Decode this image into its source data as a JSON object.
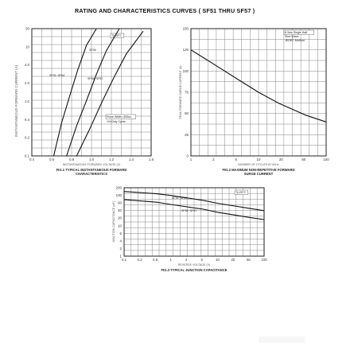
{
  "page": {
    "title": "RATING AND CHARACTERISTICS CURVES ( SF51 THRU SF57 )",
    "side_label": "INSTANTANEOUS FORWARD CURRENT (A)"
  },
  "chart_data": [
    {
      "type": "line",
      "name": "fig1",
      "caption": [
        "FIG.1 TYPICAL INSTANTANEOUS FORWARD",
        "CHARACTERISTICS"
      ],
      "xlabel": "INSTANTANEOUS FORWARD VOLTAGE (V)",
      "ylabel": "",
      "yticks": [
        "20",
        "10",
        "4.0",
        "2.0",
        "1.0",
        "0.4",
        "0.2",
        "0.1"
      ],
      "xticks": [
        "0.4",
        "0.6",
        "0.8",
        "1.0",
        "1.2",
        "1.4",
        "1.6"
      ],
      "xlim": [
        0.4,
        1.6
      ],
      "ylog": [
        0.1,
        20
      ],
      "annotations": [
        "Tj=25°C",
        "Pulse Width=300us",
        "1% Duty Cycle",
        "SF51~SF54",
        "SF55",
        "SF56~SF57"
      ],
      "series": [
        {
          "x": [
            0.62,
            0.7,
            0.78,
            0.86,
            0.95,
            1.05
          ],
          "y": [
            0.1,
            0.4,
            1.2,
            3.5,
            10,
            20
          ]
        },
        {
          "x": [
            0.75,
            0.85,
            0.95,
            1.05,
            1.15,
            1.28
          ],
          "y": [
            0.1,
            0.35,
            1.0,
            3.0,
            8,
            20
          ]
        },
        {
          "x": [
            0.85,
            0.98,
            1.1,
            1.22,
            1.35,
            1.52
          ],
          "y": [
            0.1,
            0.3,
            0.9,
            2.5,
            7,
            18
          ]
        }
      ]
    },
    {
      "type": "line",
      "name": "fig2",
      "caption": [
        "FIG.2 MAXIMUM NON-REPETITIVE FORWARD",
        "SURGE CURRENT"
      ],
      "xlabel": "NUMBER OF CYCLES AT 60Hz",
      "ylabel": "PEAK FORWARD SURGE CURRENT (A)",
      "yticks": [
        "150",
        "125",
        "100",
        "75",
        "50",
        "25",
        "0"
      ],
      "xticks": [
        "1",
        "2",
        "5",
        "10",
        "20",
        "50",
        "100"
      ],
      "xlog": [
        1,
        100
      ],
      "ylim": [
        0,
        150
      ],
      "annotations": [
        "8.3ms Single Half",
        "Sine-Wave",
        "JEDEC Method"
      ],
      "series": [
        {
          "x": [
            1,
            2,
            5,
            10,
            20,
            50,
            100
          ],
          "y": [
            125,
            110,
            90,
            75,
            62,
            48,
            40
          ]
        }
      ]
    },
    {
      "type": "line",
      "name": "fig3",
      "caption": [
        "FIG.3 TYPICAL JUNCTION CAPACITANCE"
      ],
      "xlabel": "REVERSE VOLTAGE (V)",
      "ylabel": "JUNCTION CAPACITANCE (pF)",
      "yticks": [
        "200",
        "100",
        "60",
        "40",
        "20",
        "10",
        "6",
        "4",
        "2",
        "1"
      ],
      "xticks": [
        "0.1",
        "0.2",
        "0.5",
        "1",
        "2",
        "5",
        "10",
        "20",
        "50",
        "100"
      ],
      "xlog": [
        0.1,
        100
      ],
      "ylog": [
        1,
        200
      ],
      "annotations": [
        "Tj=25°C",
        "SF51~SF54",
        "SF55~SF57"
      ],
      "series": [
        {
          "x": [
            0.1,
            0.5,
            1,
            5,
            10,
            50,
            100
          ],
          "y": [
            150,
            125,
            110,
            75,
            60,
            40,
            34
          ]
        },
        {
          "x": [
            0.1,
            0.5,
            1,
            5,
            10,
            50,
            100
          ],
          "y": [
            80,
            65,
            55,
            38,
            30,
            20,
            17
          ]
        }
      ]
    }
  ]
}
